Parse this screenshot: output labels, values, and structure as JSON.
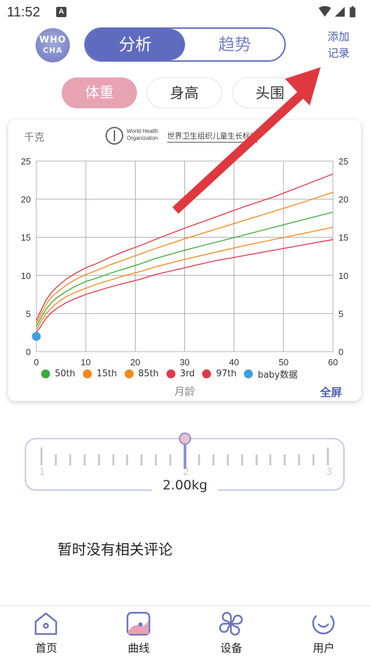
{
  "status_bar": {
    "time": "11:52",
    "notification_badge": "A"
  },
  "header": {
    "logo": {
      "line1": "WHO",
      "line2": "CHA"
    },
    "segment": {
      "active": "分析",
      "inactive": "趋势"
    },
    "add_record": {
      "line1": "添加",
      "line2": "记录"
    }
  },
  "metric_tabs": [
    {
      "label": "体重",
      "active": true
    },
    {
      "label": "身高",
      "active": false
    },
    {
      "label": "头围",
      "active": false
    }
  ],
  "chart_header": {
    "unit": "千克",
    "who_text": "World Health Organization",
    "who_cn": "世界卫生组织儿童生长标准"
  },
  "chart_data": {
    "type": "line",
    "x_title": "月龄",
    "xlim": [
      0,
      60
    ],
    "ylim": [
      0,
      25
    ],
    "x_ticks": [
      0,
      10,
      20,
      30,
      40,
      50,
      60
    ],
    "y_ticks": [
      0,
      5,
      10,
      15,
      20,
      25
    ],
    "grid": true,
    "legend_position": "bottom",
    "x": [
      0,
      1,
      2,
      3,
      4,
      6,
      8,
      10,
      12,
      15,
      18,
      21,
      24,
      30,
      36,
      42,
      48,
      54,
      60
    ],
    "series": [
      {
        "name": "50th",
        "color": "#3daa3d",
        "values": [
          3.3,
          4.5,
          5.6,
          6.4,
          7.0,
          7.9,
          8.6,
          9.2,
          9.6,
          10.3,
          10.9,
          11.5,
          12.2,
          13.3,
          14.3,
          15.3,
          16.3,
          17.3,
          18.3
        ]
      },
      {
        "name": "15th",
        "color": "#f2891c",
        "values": [
          2.9,
          4.0,
          5.0,
          5.7,
          6.3,
          7.2,
          7.8,
          8.3,
          8.8,
          9.4,
          10.0,
          10.5,
          11.1,
          12.1,
          13.0,
          13.9,
          14.7,
          15.5,
          16.3
        ]
      },
      {
        "name": "85th",
        "color": "#f2891c",
        "values": [
          3.7,
          5.0,
          6.2,
          7.1,
          7.7,
          8.7,
          9.5,
          10.1,
          10.6,
          11.4,
          12.1,
          12.8,
          13.5,
          14.8,
          16.0,
          17.2,
          18.4,
          19.6,
          20.9
        ]
      },
      {
        "name": "3rd",
        "color": "#e0384b",
        "values": [
          2.5,
          3.4,
          4.4,
          5.1,
          5.6,
          6.4,
          7.0,
          7.5,
          7.9,
          8.5,
          9.0,
          9.5,
          10.1,
          11.0,
          11.9,
          12.6,
          13.3,
          14.0,
          14.7
        ]
      },
      {
        "name": "97th",
        "color": "#e0384b",
        "values": [
          4.1,
          5.5,
          6.8,
          7.7,
          8.4,
          9.5,
          10.3,
          11.0,
          11.5,
          12.4,
          13.2,
          13.9,
          14.7,
          16.2,
          17.6,
          19.0,
          20.3,
          21.8,
          23.3
        ]
      }
    ],
    "baby_points": {
      "name": "baby数据",
      "color": "#3f9ee0",
      "x": [
        0
      ],
      "y": [
        2.0
      ]
    }
  },
  "chart_footer": {
    "fullscreen": "全屏"
  },
  "slider": {
    "ticks_labels": [
      "1",
      "2",
      "3"
    ],
    "value": "2.00kg"
  },
  "comments": {
    "empty": "暂时没有相关评论"
  },
  "bottom_nav": [
    {
      "label": "首页",
      "icon": "home-icon"
    },
    {
      "label": "曲线",
      "icon": "curve-icon"
    },
    {
      "label": "设备",
      "icon": "device-icon"
    },
    {
      "label": "用户",
      "icon": "user-icon"
    }
  ],
  "colors": {
    "accent": "#5f6bbf",
    "pink": "#e7a2b4",
    "arrow": "#e0383f"
  }
}
